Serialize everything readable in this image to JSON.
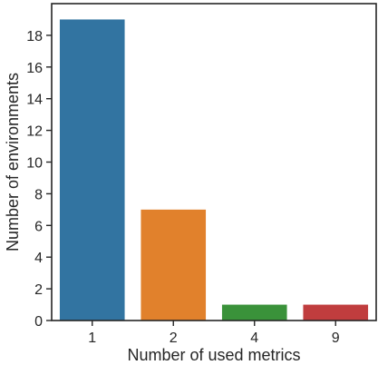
{
  "chart_data": {
    "type": "bar",
    "title": "",
    "xlabel": "Number of used metrics",
    "ylabel": "Number of environments",
    "categories": [
      "1",
      "2",
      "4",
      "9"
    ],
    "values": [
      19,
      7,
      1,
      1
    ],
    "colors": [
      "#3274a1",
      "#e1812c",
      "#3a923a",
      "#c03d3e"
    ],
    "ylim": [
      0,
      20
    ],
    "yticks": [
      0,
      2,
      4,
      6,
      8,
      10,
      12,
      14,
      16,
      18
    ],
    "grid": false,
    "legend": "none"
  }
}
